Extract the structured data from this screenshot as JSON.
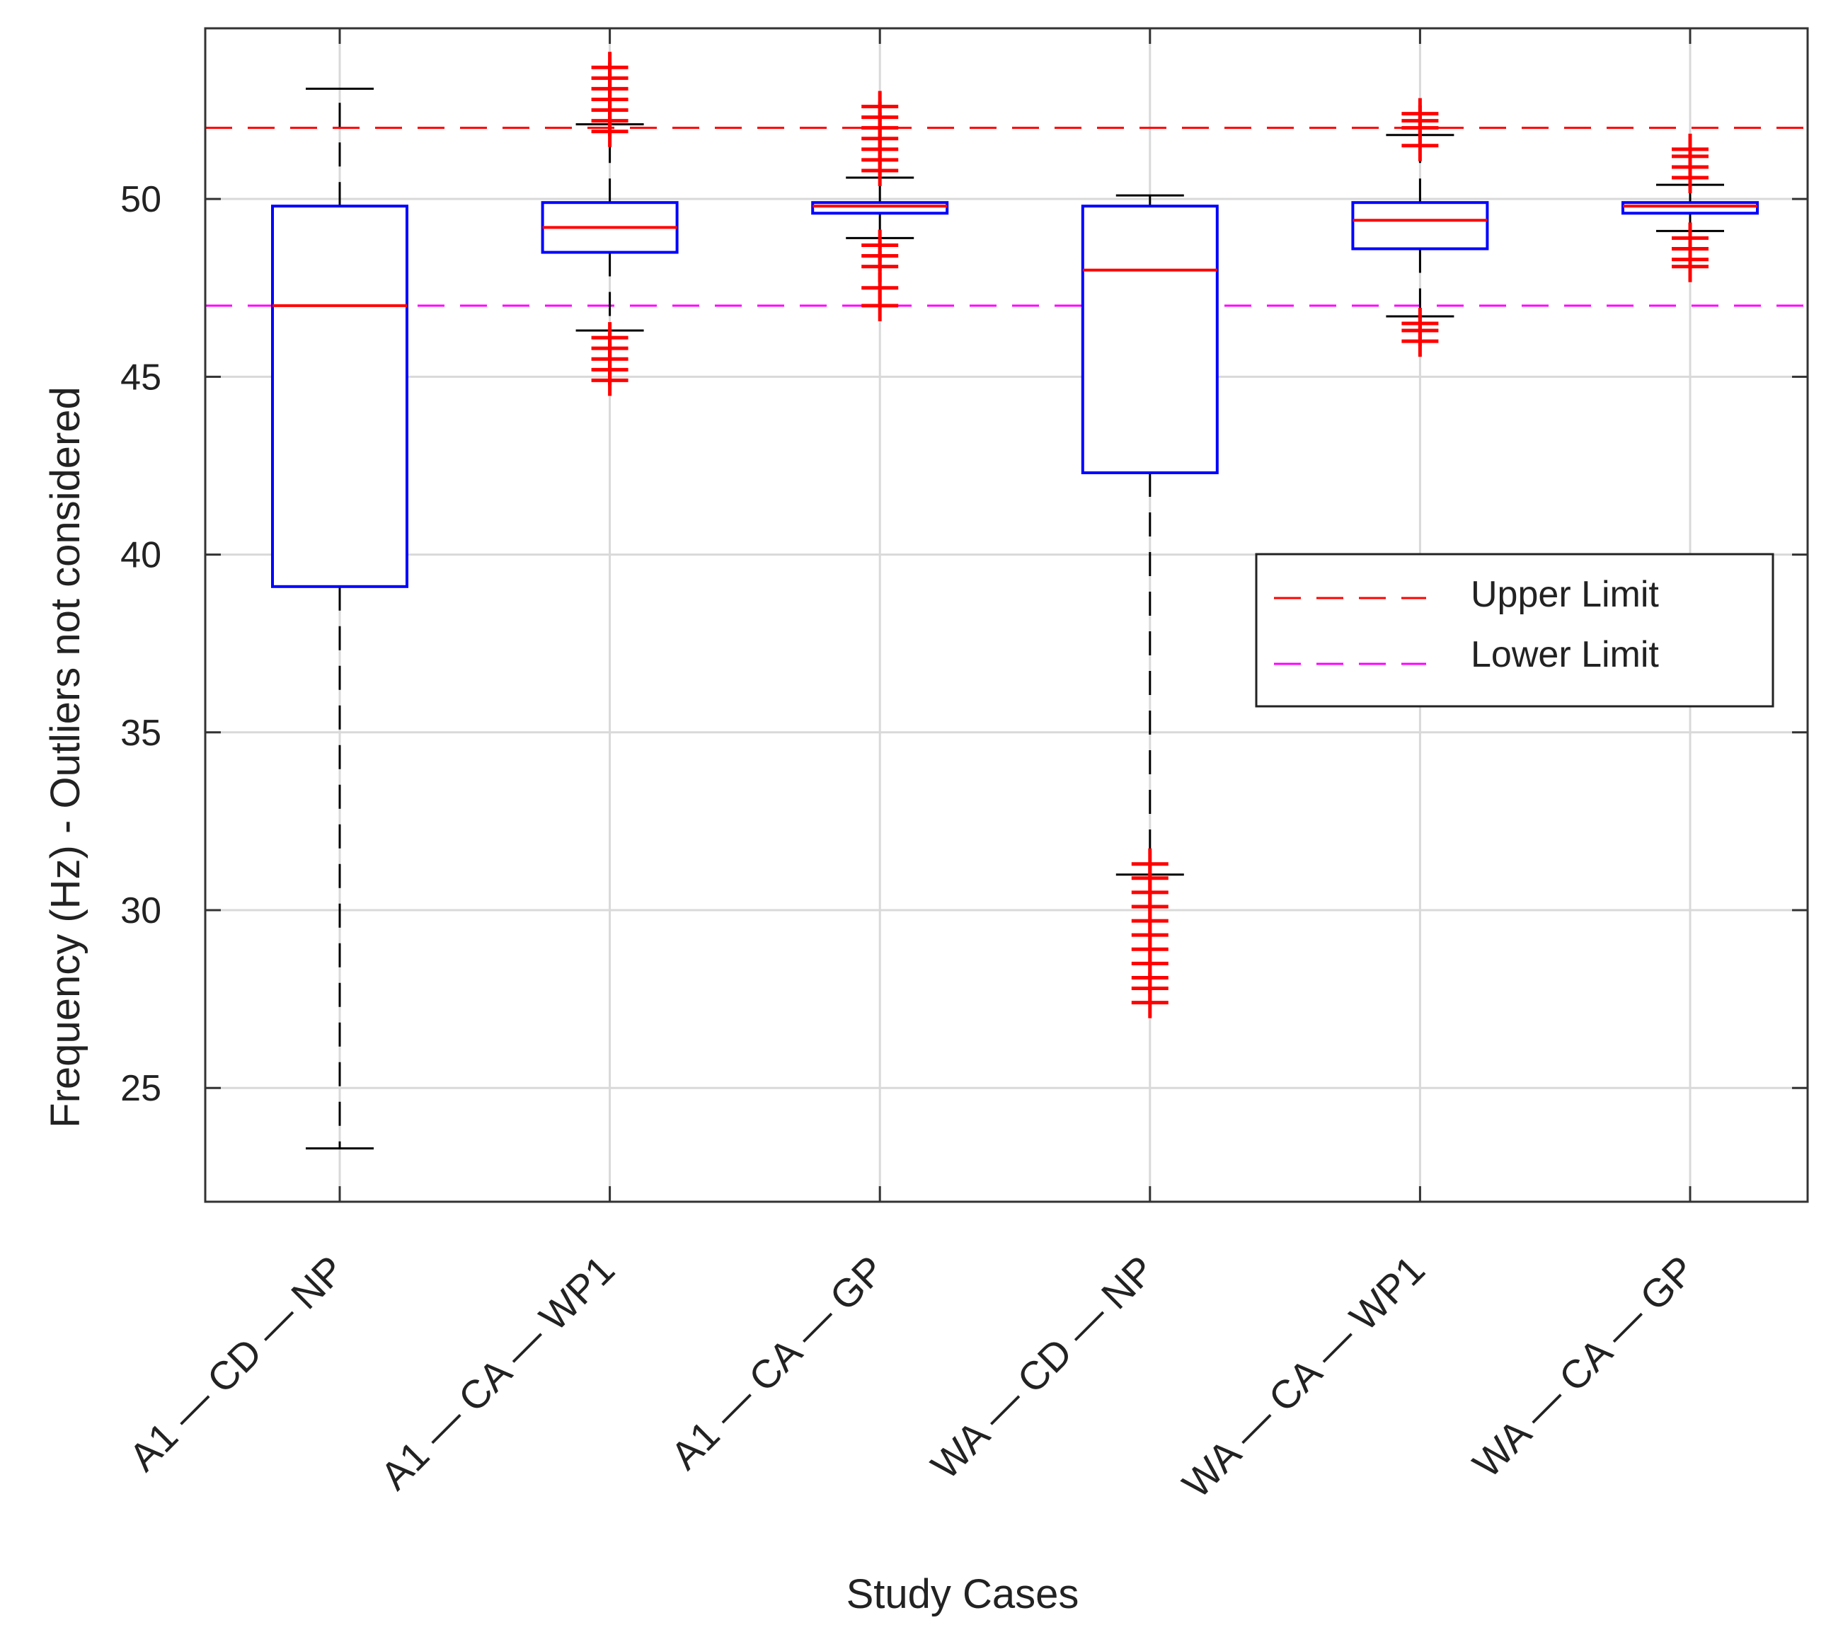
{
  "chart_data": {
    "type": "box",
    "title": "",
    "xlabel": "Study Cases",
    "ylabel": "Frequency (Hz) - Outliers not considered",
    "ylim": [
      21.8,
      54.8
    ],
    "yticks": [
      25,
      30,
      35,
      40,
      45,
      50
    ],
    "grid": true,
    "categories": [
      "A1 — CD — NP",
      "A1 — CA — WP1",
      "A1 — CA — GP",
      "WA — CD — NP",
      "WA — CA — WP1",
      "WA — CA — GP"
    ],
    "boxes": [
      {
        "category": "A1 — CD — NP",
        "q1": 39.1,
        "median": 47.0,
        "q3": 49.8,
        "whisker_low": 23.3,
        "whisker_high": 53.1,
        "outliers": []
      },
      {
        "category": "A1 — CA — WP1",
        "q1": 48.5,
        "median": 49.2,
        "q3": 49.9,
        "whisker_low": 46.3,
        "whisker_high": 52.1,
        "outliers": [
          52.2,
          52.5,
          52.8,
          53.1,
          53.4,
          53.7,
          51.9,
          46.1,
          45.8,
          45.5,
          45.2,
          44.9
        ]
      },
      {
        "category": "A1 — CA — GP",
        "q1": 49.6,
        "median": 49.8,
        "q3": 49.9,
        "whisker_low": 48.9,
        "whisker_high": 50.6,
        "outliers": [
          50.8,
          51.1,
          51.4,
          51.7,
          52.0,
          52.3,
          52.6,
          48.7,
          48.4,
          48.1,
          47.5,
          47.0
        ]
      },
      {
        "category": "WA — CD — NP",
        "q1": 42.3,
        "median": 48.0,
        "q3": 49.8,
        "whisker_low": 31.0,
        "whisker_high": 50.1,
        "outliers": [
          30.9,
          30.5,
          30.1,
          29.7,
          29.3,
          28.9,
          28.5,
          28.1,
          27.8,
          27.4,
          31.3
        ]
      },
      {
        "category": "WA — CA — WP1",
        "q1": 48.6,
        "median": 49.4,
        "q3": 49.9,
        "whisker_low": 46.7,
        "whisker_high": 51.8,
        "outliers": [
          52.0,
          52.2,
          52.4,
          51.5,
          46.5,
          46.3,
          46.0
        ]
      },
      {
        "category": "WA — CA — GP",
        "q1": 49.6,
        "median": 49.8,
        "q3": 49.9,
        "whisker_low": 49.1,
        "whisker_high": 50.4,
        "outliers": [
          50.6,
          50.9,
          51.2,
          51.4,
          48.9,
          48.6,
          48.3,
          48.1
        ]
      }
    ],
    "reference_lines": [
      {
        "name": "Upper Limit",
        "value": 52,
        "color": "#ff0000",
        "style": "dashed"
      },
      {
        "name": "Lower Limit",
        "value": 47,
        "color": "#ff00ff",
        "style": "dashed"
      }
    ],
    "legend": {
      "position": "right",
      "entries": [
        "Upper Limit",
        "Lower Limit"
      ]
    },
    "colors": {
      "box": "#0000ff",
      "median": "#ff0000",
      "outlier": "#ff0000",
      "whisker": "#000000",
      "grid": "#d9d9d9"
    }
  }
}
